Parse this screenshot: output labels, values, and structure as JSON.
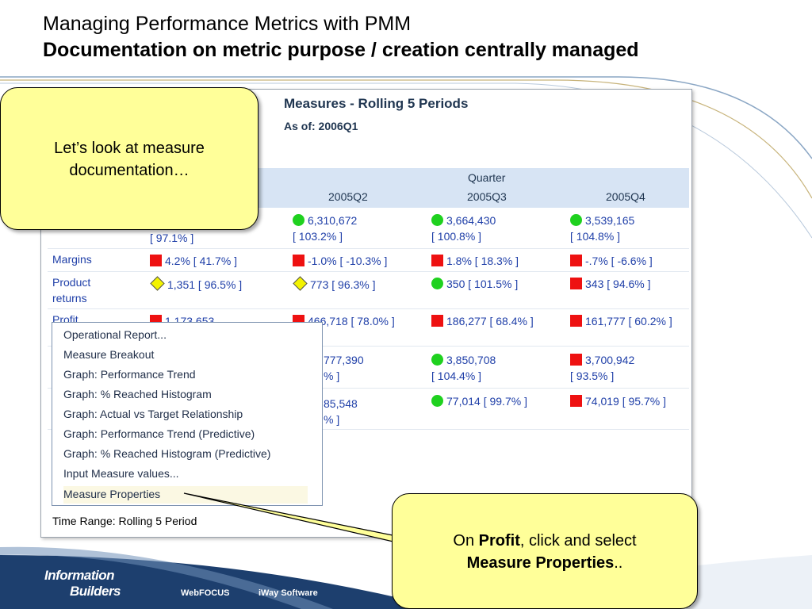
{
  "slide": {
    "title_line1": "Managing Performance Metrics with PMM",
    "title_line2": "Documentation on metric purpose / creation centrally managed",
    "logo_line1": "Information",
    "logo_line2": "Builders",
    "footer_link1": "WebFOCUS",
    "footer_link2": "iWay Software",
    "colors": {
      "accent_line": "#8aa6c4",
      "band": "#d7e4f4",
      "callout": "#ffff99",
      "footer": "#1d3f6e"
    }
  },
  "report": {
    "title": "Measures - Rolling 5 Periods",
    "as_of": "As of: 2006Q1",
    "group_header": "Quarter",
    "columns": [
      "2005Q2",
      "2005Q3",
      "2005Q4"
    ],
    "rows": [
      {
        "label": "",
        "first_col": "[ 97.1% ]",
        "cells": [
          {
            "status": "green",
            "line1": "6,310,672",
            "line2": "[ 103.2% ]"
          },
          {
            "status": "green",
            "line1": "3,664,430",
            "line2": "[ 100.8% ]"
          },
          {
            "status": "green",
            "line1": "3,539,165",
            "line2": "[ 104.8% ]"
          }
        ]
      },
      {
        "label": "Margins",
        "first_col": "4.2% [ 41.7% ]",
        "first_status": "red",
        "cells": [
          {
            "status": "red",
            "line1": "-1.0% [ -10.3% ]"
          },
          {
            "status": "red",
            "line1": "1.8% [ 18.3% ]"
          },
          {
            "status": "red",
            "line1": "-.7% [ -6.6% ]"
          }
        ]
      },
      {
        "label": "Product returns",
        "first_col": "1,351 [ 96.5% ]",
        "first_status": "yellow",
        "cells": [
          {
            "status": "yellow",
            "line1": "773 [ 96.3% ]"
          },
          {
            "status": "green",
            "line1": "350 [ 101.5% ]"
          },
          {
            "status": "red",
            "line1": "343 [ 94.6% ]"
          }
        ]
      },
      {
        "label": "Profit",
        "first_col": "1,173,653",
        "first_status": "red",
        "cells": [
          {
            "status": "red",
            "line1": "466,718 [ 78.0% ]"
          },
          {
            "status": "red",
            "line1": "186,277 [ 68.4% ]"
          },
          {
            "status": "red",
            "line1": "161,777 [ 60.2% ]"
          }
        ]
      },
      {
        "label": "",
        "cells": [
          {
            "line1": "777,390",
            "line2": "% ]"
          },
          {
            "status": "green",
            "line1": "3,850,708",
            "line2": "[ 104.4% ]"
          },
          {
            "status": "red",
            "line1": "3,700,942",
            "line2": "[ 93.5% ]"
          }
        ]
      },
      {
        "label": "",
        "cells": [
          {
            "line1": "85,548",
            "line2": "% ]"
          },
          {
            "status": "green",
            "line1": "77,014 [ 99.7% ]"
          },
          {
            "status": "red",
            "line1": "74,019 [ 95.7% ]"
          }
        ]
      }
    ],
    "time_range": "Time Range: Rolling 5 Period"
  },
  "context_menu": {
    "items": [
      "Operational Report...",
      "Measure Breakout",
      "Graph: Performance Trend",
      "Graph: % Reached Histogram",
      "Graph: Actual vs Target Relationship",
      "Graph: Performance Trend (Predictive)",
      "Graph: % Reached Histogram (Predictive)",
      "Input Measure values...",
      "Measure Properties"
    ],
    "highlighted_index": 8
  },
  "callouts": {
    "top": "Let’s look at measure documentation…",
    "bottom_prefix": "On ",
    "bottom_bold1": "Profit",
    "bottom_mid": ", click and select",
    "bottom_bold2": "Measure Properties",
    "bottom_suffix": ".."
  }
}
